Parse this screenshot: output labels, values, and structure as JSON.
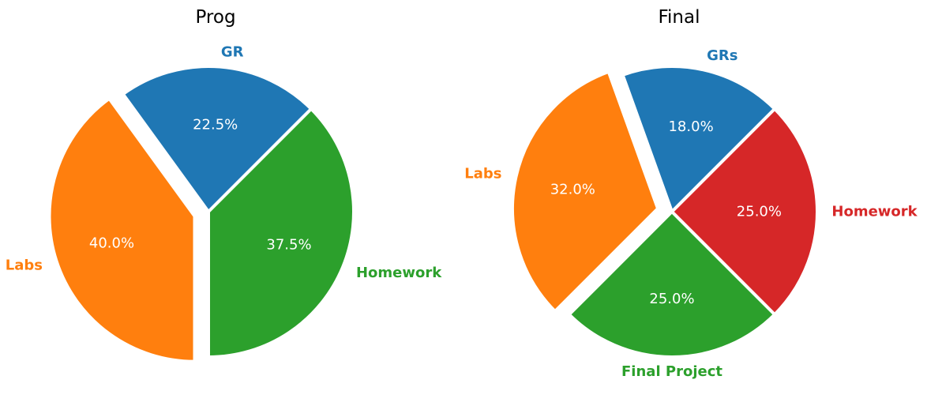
{
  "chart_data": [
    {
      "type": "pie",
      "title": "Prog",
      "slices": [
        {
          "label": "GR",
          "value": 22.5,
          "pct_label": "22.5%",
          "color": "#1f77b4",
          "exploded": false
        },
        {
          "label": "Labs",
          "value": 40.0,
          "pct_label": "40.0%",
          "color": "#ff7f0e",
          "exploded": true
        },
        {
          "label": "Homework",
          "value": 37.5,
          "pct_label": "37.5%",
          "color": "#2ca02c",
          "exploded": false
        }
      ]
    },
    {
      "type": "pie",
      "title": "Final",
      "slices": [
        {
          "label": "GRs",
          "value": 18.0,
          "pct_label": "18.0%",
          "color": "#1f77b4",
          "exploded": false
        },
        {
          "label": "Labs",
          "value": 32.0,
          "pct_label": "32.0%",
          "color": "#ff7f0e",
          "exploded": true
        },
        {
          "label": "Final Project",
          "value": 25.0,
          "pct_label": "25.0%",
          "color": "#2ca02c",
          "exploded": false
        },
        {
          "label": "Homework",
          "value": 25.0,
          "pct_label": "25.0%",
          "color": "#d62728",
          "exploded": false
        }
      ]
    }
  ]
}
